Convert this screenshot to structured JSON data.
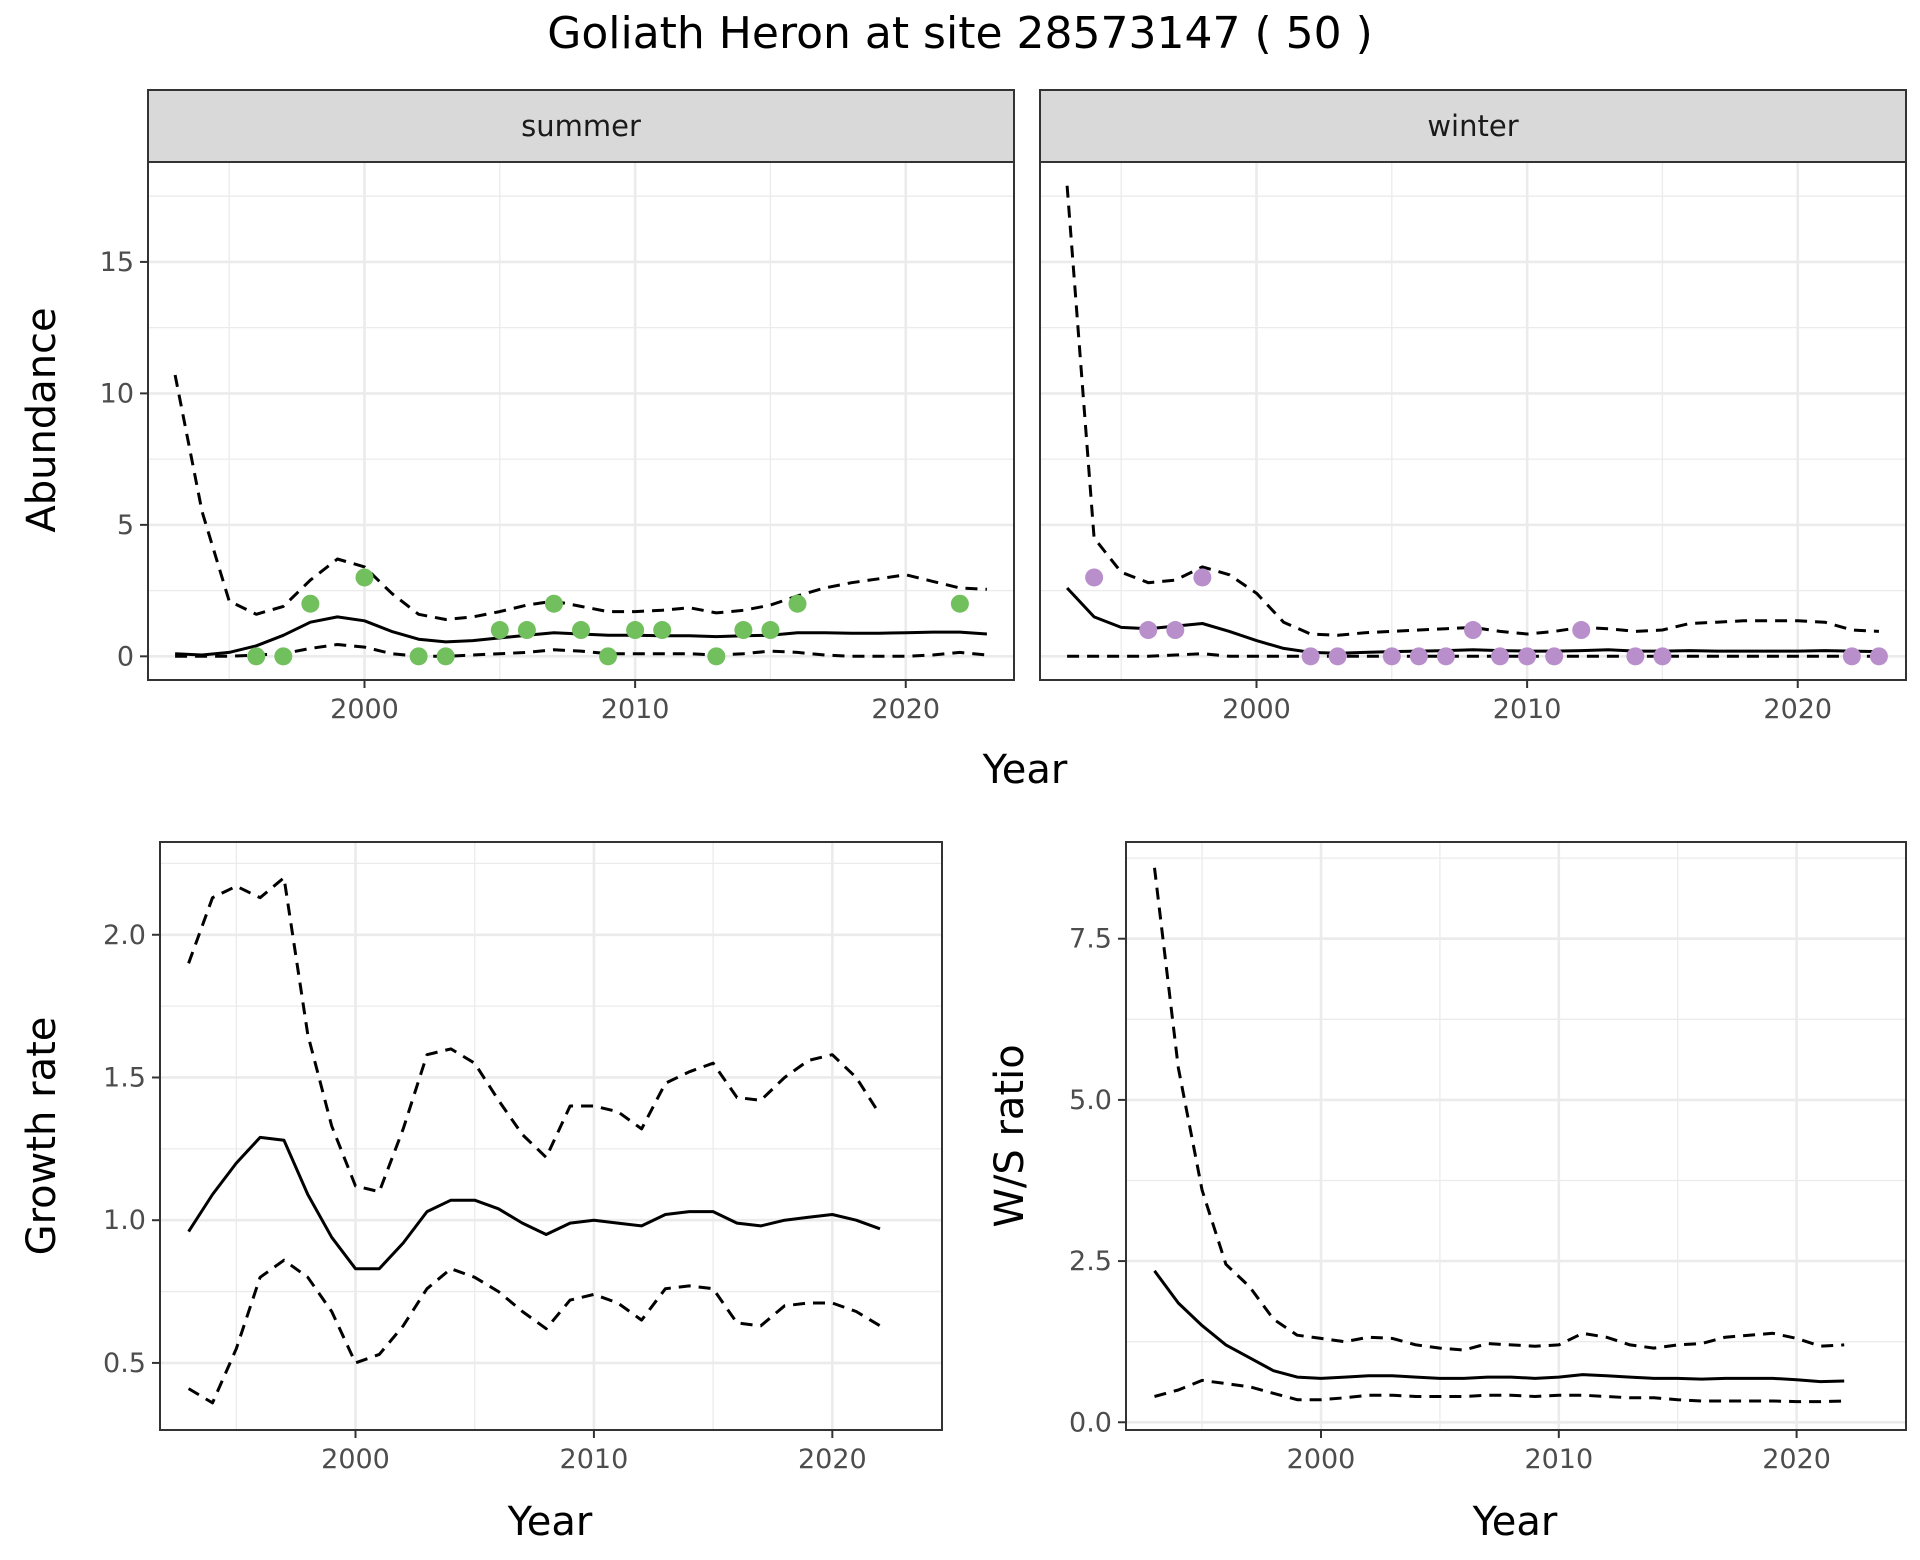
{
  "title": "Goliath Heron at site 28573147 ( 50 )",
  "colors": {
    "summer_points": "#72bf5e",
    "winter_points": "#b98fcb",
    "line": "#000000",
    "grid": "#ebebeb",
    "strip_bg": "#d9d9d9"
  },
  "chart_data": [
    {
      "type": "line",
      "panel": "abundance",
      "facets": [
        "summer",
        "winter"
      ],
      "xlabel": "Year",
      "ylabel": "Abundance",
      "xlim": [
        1992,
        2024
      ],
      "ylim": [
        -0.9,
        18.8
      ],
      "xticks": [
        2000,
        2010,
        2020
      ],
      "yticks": [
        0,
        5,
        10,
        15
      ],
      "facet_data": {
        "summer": {
          "x": [
            1993,
            1994,
            1995,
            1996,
            1997,
            1998,
            1999,
            2000,
            2001,
            2002,
            2003,
            2004,
            2005,
            2006,
            2007,
            2008,
            2009,
            2010,
            2011,
            2012,
            2013,
            2014,
            2015,
            2016,
            2017,
            2018,
            2019,
            2020,
            2021,
            2022,
            2023
          ],
          "mean": [
            0.1,
            0.05,
            0.15,
            0.4,
            0.8,
            1.3,
            1.5,
            1.35,
            0.95,
            0.65,
            0.55,
            0.6,
            0.7,
            0.8,
            0.9,
            0.85,
            0.8,
            0.8,
            0.78,
            0.78,
            0.75,
            0.78,
            0.8,
            0.9,
            0.9,
            0.88,
            0.88,
            0.9,
            0.92,
            0.92,
            0.85
          ],
          "upper": [
            10.7,
            5.5,
            2.1,
            1.6,
            1.9,
            2.9,
            3.7,
            3.4,
            2.4,
            1.6,
            1.4,
            1.5,
            1.7,
            1.95,
            2.1,
            1.9,
            1.7,
            1.7,
            1.75,
            1.85,
            1.65,
            1.75,
            1.95,
            2.3,
            2.6,
            2.8,
            2.95,
            3.1,
            2.85,
            2.6,
            2.55
          ],
          "lower": [
            0,
            0,
            0,
            0.05,
            0.1,
            0.3,
            0.45,
            0.35,
            0.1,
            0,
            0,
            0.05,
            0.1,
            0.15,
            0.25,
            0.2,
            0.1,
            0.1,
            0.1,
            0.1,
            0.05,
            0.1,
            0.2,
            0.15,
            0.05,
            0,
            0,
            0,
            0.05,
            0.15,
            0.05
          ],
          "points": [
            [
              1996,
              0
            ],
            [
              1997,
              0
            ],
            [
              1998,
              2
            ],
            [
              2000,
              3
            ],
            [
              2002,
              0
            ],
            [
              2003,
              0
            ],
            [
              2005,
              1
            ],
            [
              2006,
              1
            ],
            [
              2007,
              2
            ],
            [
              2008,
              1
            ],
            [
              2009,
              0
            ],
            [
              2010,
              1
            ],
            [
              2011,
              1
            ],
            [
              2013,
              0
            ],
            [
              2014,
              1
            ],
            [
              2015,
              1
            ],
            [
              2016,
              2
            ],
            [
              2022,
              2
            ]
          ]
        },
        "winter": {
          "x": [
            1993,
            1994,
            1995,
            1996,
            1997,
            1998,
            1999,
            2000,
            2001,
            2002,
            2003,
            2004,
            2005,
            2006,
            2007,
            2008,
            2009,
            2010,
            2011,
            2012,
            2013,
            2014,
            2015,
            2016,
            2017,
            2018,
            2019,
            2020,
            2021,
            2022,
            2023
          ],
          "mean": [
            2.6,
            1.5,
            1.1,
            1.05,
            1.15,
            1.25,
            0.95,
            0.6,
            0.3,
            0.15,
            0.12,
            0.15,
            0.18,
            0.2,
            0.22,
            0.25,
            0.22,
            0.2,
            0.2,
            0.22,
            0.25,
            0.2,
            0.2,
            0.22,
            0.2,
            0.2,
            0.2,
            0.2,
            0.22,
            0.2,
            0.18
          ],
          "upper": [
            17.9,
            4.5,
            3.2,
            2.8,
            2.9,
            3.4,
            3.1,
            2.4,
            1.3,
            0.85,
            0.8,
            0.9,
            0.95,
            1.0,
            1.05,
            1.1,
            0.95,
            0.85,
            0.95,
            1.1,
            1.05,
            0.95,
            1.0,
            1.25,
            1.3,
            1.35,
            1.35,
            1.35,
            1.3,
            1.0,
            0.95
          ],
          "lower": [
            0,
            0,
            0,
            0,
            0.05,
            0.1,
            0,
            0,
            0,
            0,
            0,
            0,
            0,
            0,
            0,
            0,
            0,
            0,
            0,
            0,
            0,
            0,
            0,
            0,
            0,
            0,
            0,
            0,
            0,
            0,
            0
          ],
          "points": [
            [
              1994,
              3
            ],
            [
              1996,
              1
            ],
            [
              1997,
              1
            ],
            [
              1998,
              3
            ],
            [
              2002,
              0
            ],
            [
              2003,
              0
            ],
            [
              2005,
              0
            ],
            [
              2006,
              0
            ],
            [
              2007,
              0
            ],
            [
              2008,
              1
            ],
            [
              2009,
              0
            ],
            [
              2010,
              0
            ],
            [
              2011,
              0
            ],
            [
              2012,
              1
            ],
            [
              2014,
              0
            ],
            [
              2015,
              0
            ],
            [
              2022,
              0
            ],
            [
              2023,
              0
            ]
          ]
        }
      }
    },
    {
      "type": "line",
      "panel": "growth",
      "xlabel": "Year",
      "ylabel": "Growth rate",
      "xlim": [
        1991.8,
        2024.6
      ],
      "ylim": [
        0.265,
        2.325
      ],
      "xticks": [
        2000,
        2010,
        2020
      ],
      "yticks": [
        0.5,
        1.0,
        1.5,
        2.0
      ],
      "ytick_labels": [
        "0.5",
        "1.0",
        "1.5",
        "2.0"
      ],
      "x": [
        1993,
        1994,
        1995,
        1996,
        1997,
        1998,
        1999,
        2000,
        2001,
        2002,
        2003,
        2004,
        2005,
        2006,
        2007,
        2008,
        2009,
        2010,
        2011,
        2012,
        2013,
        2014,
        2015,
        2016,
        2017,
        2018,
        2019,
        2020,
        2021,
        2022
      ],
      "mean": [
        0.96,
        1.09,
        1.2,
        1.29,
        1.28,
        1.09,
        0.94,
        0.83,
        0.83,
        0.92,
        1.03,
        1.07,
        1.07,
        1.04,
        0.99,
        0.95,
        0.99,
        1.0,
        0.99,
        0.98,
        1.02,
        1.03,
        1.03,
        0.99,
        0.98,
        1.0,
        1.01,
        1.02,
        1.0,
        0.97
      ],
      "upper": [
        1.9,
        2.13,
        2.17,
        2.13,
        2.2,
        1.65,
        1.33,
        1.12,
        1.1,
        1.32,
        1.58,
        1.6,
        1.55,
        1.42,
        1.3,
        1.22,
        1.4,
        1.4,
        1.38,
        1.32,
        1.48,
        1.52,
        1.55,
        1.43,
        1.42,
        1.5,
        1.56,
        1.58,
        1.5,
        1.37
      ],
      "lower": [
        0.41,
        0.36,
        0.55,
        0.8,
        0.86,
        0.8,
        0.68,
        0.5,
        0.53,
        0.63,
        0.76,
        0.83,
        0.8,
        0.75,
        0.68,
        0.62,
        0.72,
        0.74,
        0.71,
        0.65,
        0.76,
        0.77,
        0.76,
        0.64,
        0.63,
        0.7,
        0.71,
        0.71,
        0.68,
        0.63
      ]
    },
    {
      "type": "line",
      "panel": "ratio",
      "xlabel": "Year",
      "ylabel": "W/S ratio",
      "xlim": [
        1991.8,
        2024.6
      ],
      "ylim": [
        -0.12,
        9.0
      ],
      "xticks": [
        2000,
        2010,
        2020
      ],
      "yticks": [
        0,
        2.5,
        5.0,
        7.5
      ],
      "ytick_labels": [
        "0.0",
        "2.5",
        "5.0",
        "7.5"
      ],
      "x": [
        1993,
        1994,
        1995,
        1996,
        1997,
        1998,
        1999,
        2000,
        2001,
        2002,
        2003,
        2004,
        2005,
        2006,
        2007,
        2008,
        2009,
        2010,
        2011,
        2012,
        2013,
        2014,
        2015,
        2016,
        2017,
        2018,
        2019,
        2020,
        2021,
        2022
      ],
      "mean": [
        2.35,
        1.85,
        1.5,
        1.2,
        1.0,
        0.8,
        0.7,
        0.68,
        0.7,
        0.72,
        0.72,
        0.7,
        0.68,
        0.68,
        0.7,
        0.7,
        0.68,
        0.7,
        0.74,
        0.72,
        0.7,
        0.68,
        0.68,
        0.67,
        0.68,
        0.68,
        0.68,
        0.66,
        0.63,
        0.64
      ],
      "upper": [
        8.6,
        5.5,
        3.6,
        2.45,
        2.1,
        1.6,
        1.35,
        1.3,
        1.25,
        1.32,
        1.3,
        1.2,
        1.15,
        1.12,
        1.22,
        1.2,
        1.18,
        1.2,
        1.38,
        1.32,
        1.2,
        1.15,
        1.2,
        1.22,
        1.32,
        1.35,
        1.38,
        1.3,
        1.18,
        1.2
      ],
      "lower": [
        0.4,
        0.5,
        0.65,
        0.6,
        0.55,
        0.45,
        0.35,
        0.35,
        0.38,
        0.42,
        0.42,
        0.4,
        0.4,
        0.4,
        0.42,
        0.42,
        0.4,
        0.42,
        0.42,
        0.4,
        0.38,
        0.38,
        0.35,
        0.33,
        0.33,
        0.33,
        0.33,
        0.32,
        0.32,
        0.33
      ]
    }
  ]
}
